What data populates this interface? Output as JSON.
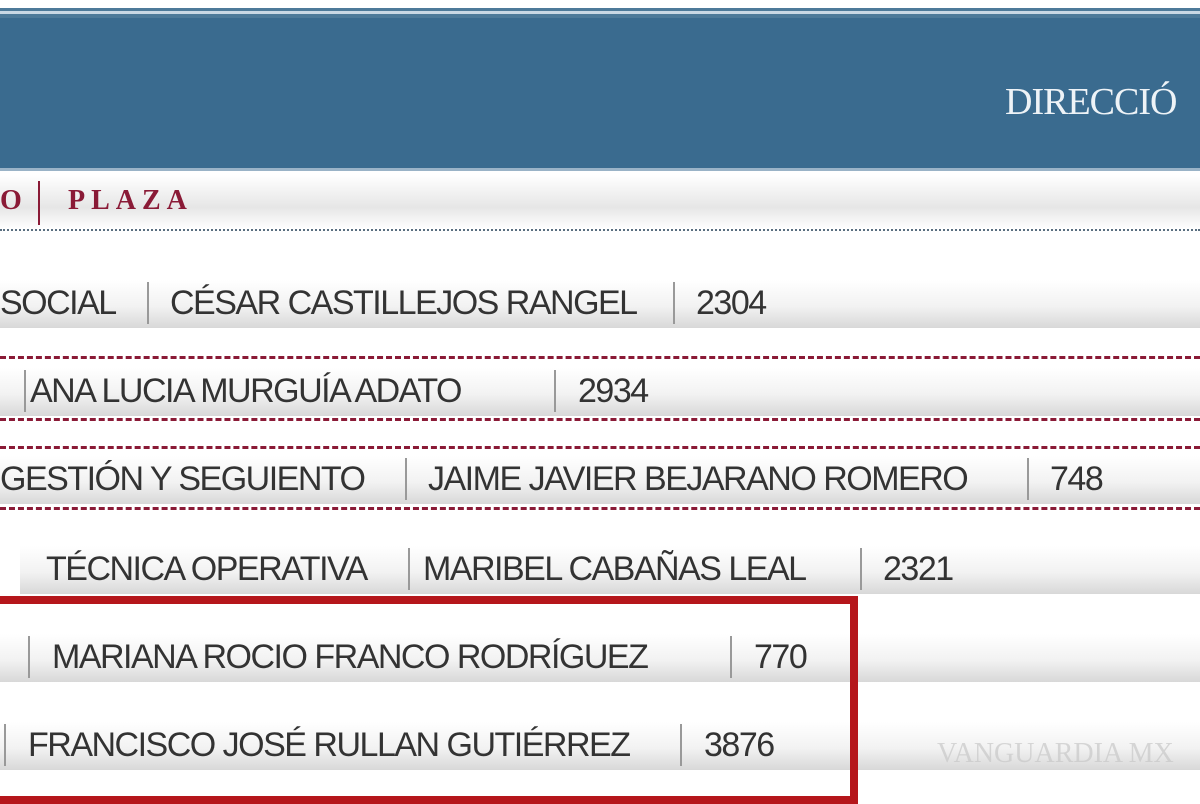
{
  "header": {
    "title": "DIRECCIÓ"
  },
  "columns": {
    "prev_fragment": "O",
    "plaza": "PLAZA"
  },
  "rows": [
    {
      "area": "SOCIAL",
      "name": "CÉSAR CASTILLEJOS RANGEL",
      "plaza": "2304"
    },
    {
      "area": "",
      "name": "ANA LUCIA MURGUÍA ADATO",
      "plaza": "2934"
    },
    {
      "area": "GESTIÓN Y SEGUIENTO",
      "name": "JAIME JAVIER BEJARANO ROMERO",
      "plaza": "748"
    },
    {
      "area": "TÉCNICA OPERATIVA",
      "name": "MARIBEL CABAÑAS LEAL",
      "plaza": "2321"
    },
    {
      "area": "",
      "name": "MARIANA ROCIO FRANCO RODRÍGUEZ",
      "plaza": "770"
    },
    {
      "area": "",
      "name": "FRANCISCO JOSÉ RULLAN GUTIÉRREZ",
      "plaza": "3876"
    }
  ],
  "highlight_color": "#b5161b",
  "watermark": "VANGUARDIA MX"
}
